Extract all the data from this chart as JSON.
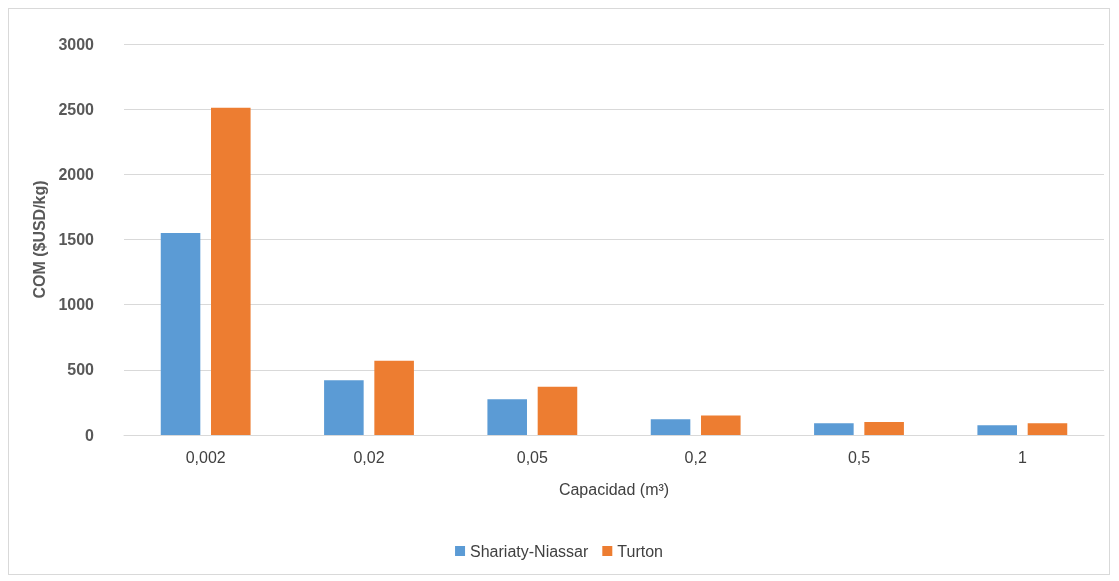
{
  "chart_data": {
    "type": "bar",
    "xlabel": "Capacidad (m³)",
    "ylabel": "COM ($USD/kg)",
    "categories": [
      "0,002",
      "0,02",
      "0,05",
      "0,2",
      "0,5",
      "1"
    ],
    "series": [
      {
        "name": "Shariaty-Niassar",
        "color": "#5b9bd5",
        "values": [
          1550,
          420,
          275,
          120,
          90,
          75
        ]
      },
      {
        "name": "Turton",
        "color": "#ed7d31",
        "values": [
          2510,
          570,
          370,
          150,
          100,
          90
        ]
      }
    ],
    "ylim": [
      0,
      3000
    ],
    "yticks": [
      0,
      500,
      1000,
      1500,
      2000,
      2500,
      3000
    ],
    "grid": "y",
    "legend": "bottom"
  }
}
